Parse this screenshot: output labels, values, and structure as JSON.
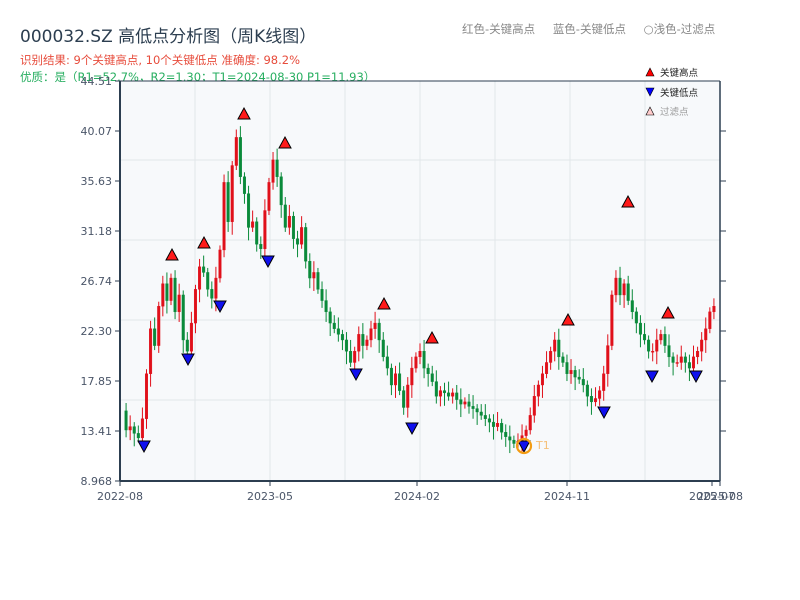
{
  "header": {
    "title": "000032.SZ 高低点分析图（周K线图）",
    "result_line": "识别结果: 9个关键高点, 10个关键低点   准确度: 98.2%",
    "quality_line": "优质：是（R1=52.7%，R2=1.30；T1=2024-08-30 P1=11.93）",
    "color_legend": [
      "红色-关键高点",
      "蓝色-关键低点",
      "○浅色-过滤点"
    ]
  },
  "legend": {
    "items": [
      {
        "label": "关键高点",
        "marker": "up-triangle",
        "color": "#ff0000"
      },
      {
        "label": "关键低点",
        "marker": "down-triangle",
        "color": "#0000ff"
      },
      {
        "label": "过滤点",
        "marker": "up-triangle-light",
        "color": "#ffcccc"
      }
    ]
  },
  "colors": {
    "up": "#e0101a",
    "down": "#0a8a3a",
    "high_marker": "#ff1a1a",
    "low_marker": "#1010ee",
    "t1_circle": "#f39c12",
    "axis": "#2c3e50",
    "plot_bg": "#f7f9fb",
    "grid": "#e2e6ea"
  },
  "chart_data": {
    "type": "candlestick",
    "title": "000032.SZ 高低点分析图（周K线图）",
    "xlabel": "",
    "ylabel": "",
    "ylim": [
      8.968,
      44.51
    ],
    "y_ticks": [
      "44.51",
      "40.07",
      "35.63",
      "31.18",
      "26.74",
      "22.30",
      "17.85",
      "13.41",
      "8.968"
    ],
    "x_ticks": [
      "2022-08",
      "2023-05",
      "2024-02",
      "2024-11",
      "2025-07",
      "2025-08"
    ],
    "annotation": "T1",
    "key_highs": [
      {
        "date": "2022-10",
        "price": 28.4
      },
      {
        "date": "2022-12",
        "price": 29.4
      },
      {
        "date": "2023-03",
        "price": 41.0
      },
      {
        "date": "2023-05",
        "price": 38.4
      },
      {
        "date": "2023-10",
        "price": 23.8
      },
      {
        "date": "2024-01",
        "price": 21.1
      },
      {
        "date": "2024-11",
        "price": 22.4
      },
      {
        "date": "2025-02",
        "price": 32.8
      },
      {
        "date": "2025-04",
        "price": 23.1
      }
    ],
    "key_lows": [
      {
        "date": "2022-09",
        "price": 12.5
      },
      {
        "date": "2022-11",
        "price": 20.0
      },
      {
        "date": "2023-01",
        "price": 24.8
      },
      {
        "date": "2023-04",
        "price": 29.1
      },
      {
        "date": "2023-08",
        "price": 18.9
      },
      {
        "date": "2023-12",
        "price": 14.1
      },
      {
        "date": "2024-08-30",
        "price": 11.93
      },
      {
        "date": "2024-12",
        "price": 15.5
      },
      {
        "date": "2025-03",
        "price": 18.7
      },
      {
        "date": "2025-06",
        "price": 18.8
      }
    ],
    "path": [
      [
        0,
        15.2
      ],
      [
        3,
        14.0
      ],
      [
        6,
        13.4
      ],
      [
        9,
        13.8
      ],
      [
        12,
        13.0
      ],
      [
        14,
        12.6
      ],
      [
        16,
        14.6
      ],
      [
        18,
        19.6
      ],
      [
        20,
        23.5
      ],
      [
        22,
        21.5
      ],
      [
        24,
        26.5
      ],
      [
        26,
        24.0
      ],
      [
        28,
        27.5
      ],
      [
        30,
        25.0
      ],
      [
        32,
        26.0
      ],
      [
        34,
        21.0
      ],
      [
        36,
        20.1
      ],
      [
        38,
        24.5
      ],
      [
        40,
        27.0
      ],
      [
        42,
        28.5
      ],
      [
        44,
        27.0
      ],
      [
        46,
        26.5
      ],
      [
        48,
        25.0
      ],
      [
        50,
        28.0
      ],
      [
        52,
        36.0
      ],
      [
        54,
        32.0
      ],
      [
        56,
        40.0
      ],
      [
        58,
        37.0
      ],
      [
        60,
        34.0
      ],
      [
        62,
        32.0
      ],
      [
        64,
        30.0
      ],
      [
        66,
        31.5
      ],
      [
        68,
        29.5
      ],
      [
        70,
        34.0
      ],
      [
        72,
        37.5
      ],
      [
        74,
        35.5
      ],
      [
        76,
        33.0
      ],
      [
        78,
        31.0
      ],
      [
        80,
        32.0
      ],
      [
        82,
        30.0
      ],
      [
        84,
        29.5
      ],
      [
        86,
        28.0
      ],
      [
        88,
        26.0
      ],
      [
        90,
        25.0
      ],
      [
        92,
        24.5
      ],
      [
        94,
        23.0
      ],
      [
        96,
        22.5
      ],
      [
        98,
        22.0
      ],
      [
        100,
        21.5
      ],
      [
        102,
        20.5
      ],
      [
        104,
        19.5
      ],
      [
        106,
        20.5
      ],
      [
        108,
        22.0
      ],
      [
        110,
        21.0
      ],
      [
        112,
        22.5
      ],
      [
        114,
        23.0
      ],
      [
        116,
        21.0
      ],
      [
        118,
        19.0
      ],
      [
        120,
        18.0
      ],
      [
        122,
        18.5
      ],
      [
        124,
        16.0
      ],
      [
        126,
        18.0
      ],
      [
        128,
        19.5
      ],
      [
        130,
        20.0
      ],
      [
        132,
        20.5
      ],
      [
        134,
        19.0
      ],
      [
        136,
        17.5
      ]
    ]
  }
}
